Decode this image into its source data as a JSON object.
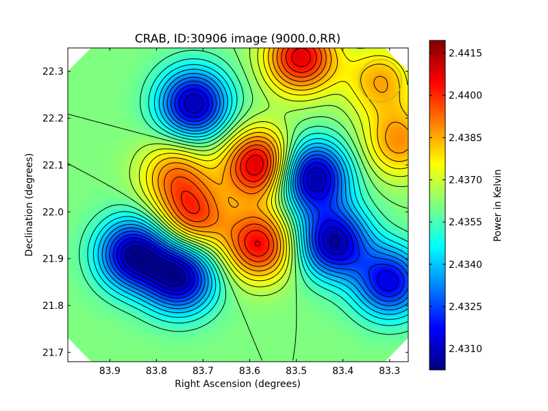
{
  "chart_data": {
    "type": "heatmap",
    "title": "CRAB, ID:30906 image (9000.0,RR)",
    "xlabel": "Right Ascension (degrees)",
    "ylabel": "Declination (degrees)",
    "xlim": [
      83.99,
      83.26
    ],
    "ylim": [
      21.68,
      22.35
    ],
    "x_ticks": [
      83.9,
      83.8,
      83.7,
      83.6,
      83.5,
      83.4,
      83.3
    ],
    "x_tick_labels": [
      "83.9",
      "83.8",
      "83.7",
      "83.6",
      "83.5",
      "83.4",
      "83.3"
    ],
    "y_ticks": [
      21.7,
      21.8,
      21.9,
      22.0,
      22.1,
      22.2,
      22.3
    ],
    "y_tick_labels": [
      "21.7",
      "21.8",
      "21.9",
      "22.0",
      "22.1",
      "22.2",
      "22.3"
    ],
    "colormap": "jet",
    "colorbar": {
      "label": "Power in Kelvin",
      "range": [
        2.43025,
        2.44195
      ],
      "ticks": [
        2.431,
        2.4325,
        2.434,
        2.4355,
        2.437,
        2.4385,
        2.44,
        2.4415
      ],
      "tick_labels": [
        "2.4310",
        "2.4325",
        "2.4340",
        "2.4355",
        "2.4370",
        "2.4385",
        "2.4400",
        "2.4415"
      ]
    },
    "contours": true,
    "features": [
      {
        "ra": 83.58,
        "dec": 22.1,
        "value": 2.4412,
        "kind": "peak"
      },
      {
        "ra": 83.49,
        "dec": 22.33,
        "value": 2.4408,
        "kind": "peak"
      },
      {
        "ra": 83.58,
        "dec": 21.93,
        "value": 2.4405,
        "kind": "peak"
      },
      {
        "ra": 83.72,
        "dec": 21.99,
        "value": 2.4396,
        "kind": "peak"
      },
      {
        "ra": 83.76,
        "dec": 22.08,
        "value": 2.4388,
        "kind": "peak"
      },
      {
        "ra": 83.28,
        "dec": 22.15,
        "value": 2.4388,
        "kind": "peak"
      },
      {
        "ra": 83.32,
        "dec": 22.28,
        "value": 2.4385,
        "kind": "peak"
      },
      {
        "ra": 83.72,
        "dec": 22.23,
        "value": 2.4308,
        "kind": "trough"
      },
      {
        "ra": 83.465,
        "dec": 22.075,
        "value": 2.4305,
        "kind": "trough"
      },
      {
        "ra": 83.42,
        "dec": 21.935,
        "value": 2.4308,
        "kind": "trough"
      },
      {
        "ra": 83.85,
        "dec": 21.91,
        "value": 2.4308,
        "kind": "trough"
      },
      {
        "ra": 83.75,
        "dec": 21.86,
        "value": 2.4308,
        "kind": "trough"
      },
      {
        "ra": 83.3,
        "dec": 21.85,
        "value": 2.4315,
        "kind": "trough"
      }
    ],
    "beam_marker": {
      "ra": 83.32,
      "dec": 22.28,
      "color": "#b8b820"
    },
    "grid": false
  }
}
